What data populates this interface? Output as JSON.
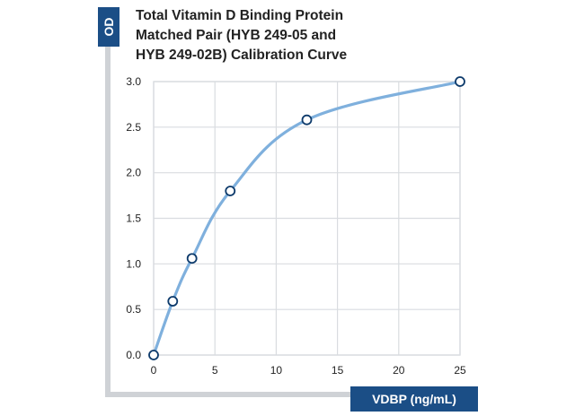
{
  "chart_data": {
    "type": "line",
    "title_lines": [
      "Total Vitamin D Binding Protein",
      "Matched Pair (HYB 249-05 and",
      "HYB 249-02B) Calibration Curve"
    ],
    "ylabel": "OD",
    "xlabel": "VDBP (ng/mL)",
    "xlim": [
      0,
      25
    ],
    "ylim": [
      0,
      3.0
    ],
    "x_ticks": [
      "0",
      "5",
      "10",
      "15",
      "20",
      "25"
    ],
    "y_ticks": [
      "0.0",
      "0.5",
      "1.0",
      "1.5",
      "2.0",
      "2.5",
      "3.0"
    ],
    "grid": true,
    "points": [
      {
        "x": 0,
        "y": 0.0
      },
      {
        "x": 1.56,
        "y": 0.59
      },
      {
        "x": 3.13,
        "y": 1.06
      },
      {
        "x": 6.25,
        "y": 1.8
      },
      {
        "x": 12.5,
        "y": 2.58
      },
      {
        "x": 25,
        "y": 3.0
      }
    ]
  },
  "colors": {
    "line": "#7fb0dd",
    "marker_edge": "#0d3a6b",
    "badge": "#1b4e86",
    "axis_frame": "#cfd2d6",
    "grid": "#d9dce0"
  }
}
